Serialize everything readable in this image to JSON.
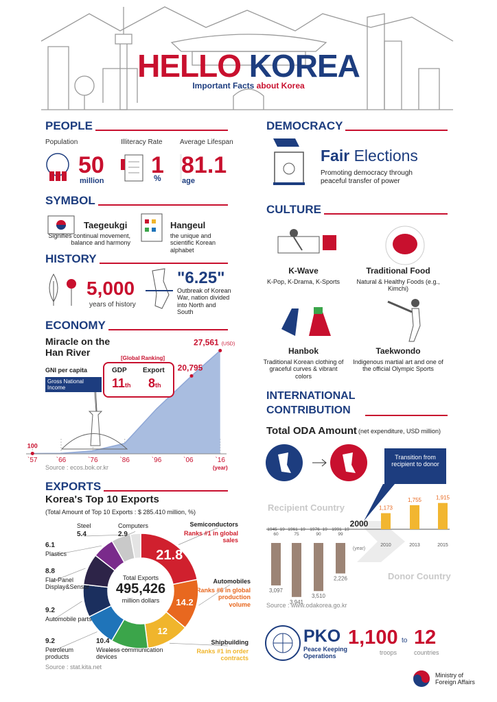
{
  "header": {
    "title_part1": "HELLO",
    "title_part2": "KOREA",
    "subtitle_part1": "Important Facts",
    "subtitle_part2": "about Korea"
  },
  "people": {
    "heading": "PEOPLE",
    "population": {
      "label": "Population",
      "value": "50",
      "unit": "million"
    },
    "illiteracy": {
      "label": "Illiteracy Rate",
      "value": "1",
      "unit": "%"
    },
    "lifespan": {
      "label": "Average Lifespan",
      "value": "81.1",
      "unit": "age"
    }
  },
  "symbol": {
    "heading": "SYMBOL",
    "items": [
      {
        "name": "Taegeukgi",
        "desc": "Signifies continual movement, balance and harmony"
      },
      {
        "name": "Hangeul",
        "desc": "the unique and scientific Korean alphabet"
      }
    ]
  },
  "history": {
    "heading": "HISTORY",
    "years": "5,000",
    "years_label": "years of history",
    "war": "\"6.25\"",
    "war_desc": "Outbreak of Korean War, nation divided into North and South"
  },
  "economy": {
    "heading": "ECONOMY",
    "title": "Miracle on the Han River",
    "gni_label": "GNI per capita",
    "gni_note": "Gross National Income",
    "ranking_label": "[Global Ranking]",
    "gdp_label": "GDP",
    "gdp_rank": "11",
    "gdp_suffix": "th",
    "export_label": "Export",
    "export_rank": "8",
    "export_suffix": "th",
    "source": "Source : ecos.bok.or.kr",
    "chart": {
      "type": "area",
      "x": [
        1957,
        1966,
        1976,
        1986,
        1996,
        2007,
        2016
      ],
      "values": [
        100,
        130,
        800,
        2800,
        12000,
        20795,
        27561
      ],
      "value_labels": [
        "100",
        null,
        null,
        null,
        null,
        "20,795",
        "27,561"
      ],
      "unit_label": "(USD)",
      "xlabel": "(year)",
      "color": "#a9bde0",
      "xlim": [
        1955,
        2018
      ],
      "ylim": [
        0,
        30000
      ],
      "xticks": [
        {
          "value": 1957,
          "label": "`57"
        },
        {
          "value": 1966,
          "label": "`66"
        },
        {
          "value": 1976,
          "label": "`76"
        },
        {
          "value": 1986,
          "label": "`86"
        },
        {
          "value": 1996,
          "label": "`96"
        },
        {
          "value": 2006,
          "label": "`06"
        },
        {
          "value": 2016,
          "label": "`16"
        }
      ]
    }
  },
  "exports": {
    "heading": "EXPORTS",
    "title": "Korea's Top 10 Exports",
    "subtitle": "(Total Amount of Top 10 Exports : $ 285.410 million, %)",
    "center_label": "Total Exports",
    "center_value": "495,426",
    "center_unit": "million dollars",
    "source": "Source : stat.kita.net",
    "rank_notes": [
      "Ranks #1 in global sales",
      "Ranks #6 in global production volume",
      "Ranks #1 in order contracts"
    ],
    "chart": {
      "type": "donut",
      "categories": [
        "Semiconductors",
        "Automobiles",
        "Shipbuilding",
        "Wireless communication devices",
        "Petroleum products",
        "Automobile parts",
        "Flat-Panel Display&Sensor",
        "Plastics",
        "Steel",
        "Computers"
      ],
      "values": [
        21.8,
        14.2,
        12,
        10.4,
        9.2,
        9.2,
        8.8,
        6.1,
        5.4,
        2.9
      ],
      "colors": [
        "#d0202e",
        "#e8681f",
        "#f0b52c",
        "#3ba54a",
        "#1f74b9",
        "#1b2f5e",
        "#2d2448",
        "#7a2b8b",
        "#c9c9c9",
        "#e4e4e4"
      ]
    }
  },
  "democracy": {
    "heading": "DEMOCRACY",
    "title_part1": "Fair",
    "title_part2": "Elections",
    "desc": "Promoting democracy through peaceful transfer of power"
  },
  "culture": {
    "heading": "CULTURE",
    "items": [
      {
        "name": "K-Wave",
        "desc": "K-Pop, K-Drama, K-Sports"
      },
      {
        "name": "Traditional Food",
        "desc": "Natural & Healthy Foods (e.g., Kimchi)"
      },
      {
        "name": "Hanbok",
        "desc": "Traditional Korean clothing of graceful curves & vibrant colors"
      },
      {
        "name": "Taekwondo",
        "desc": "Indigenous martial art and one of the official Olympic Sports"
      }
    ]
  },
  "international": {
    "heading": "INTERNATIONAL CONTRIBUTION",
    "title": "Total ODA Amount",
    "note": "(net expenditure, USD million)",
    "transition": "Transition from recipient to donor",
    "source": "Source : www.odakorea.go.kr",
    "chart": {
      "type": "bar",
      "xlabel": "(year)",
      "categories": [
        "1945~1960",
        "1961~1975",
        "1976~1990",
        "1991~1999",
        "2000",
        "2010",
        "2013",
        "2015"
      ],
      "series": [
        {
          "name": "Recipient Country",
          "color": "#9c8475",
          "values": [
            3097,
            3941,
            3510,
            2226,
            null,
            null,
            null,
            null
          ],
          "value_labels": [
            "3,097",
            "3,941",
            "3,510",
            "2,226",
            null,
            null,
            null,
            null
          ]
        },
        {
          "name": "Donor Country",
          "color": "#f2b630",
          "values": [
            null,
            null,
            null,
            null,
            null,
            1173,
            1755,
            1915
          ],
          "value_labels": [
            null,
            null,
            null,
            null,
            null,
            "1,173",
            "1,755",
            "1,915"
          ]
        }
      ]
    }
  },
  "pko": {
    "title": "PKO",
    "desc": "Peace Keeping Operations",
    "troops": "1,100",
    "troops_label": "troops",
    "to": "to",
    "countries": "12",
    "countries_label": "countries"
  },
  "footer": {
    "ministry": "Ministry of Foreign Affairs"
  }
}
